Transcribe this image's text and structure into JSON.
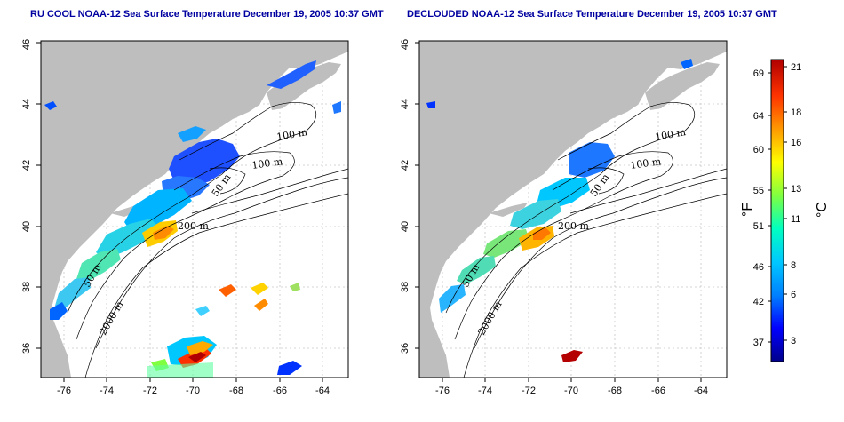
{
  "panels": [
    {
      "title": "RU COOL NOAA-12 Sea Surface Temperature December 19, 2005 10:37 GMT",
      "contour_labels": [
        "100 m",
        "100 m",
        "50 m",
        "200 m",
        "50 m",
        "2000 m"
      ]
    },
    {
      "title": "DECLOUDED NOAA-12 Sea Surface Temperature December 19, 2005 10:37 GMT",
      "contour_labels": [
        "100 m",
        "100 m",
        "50 m",
        "200 m",
        "50 m",
        "2000 m"
      ]
    }
  ],
  "axes": {
    "lon_labels": [
      "-76",
      "-74",
      "-72",
      "-70",
      "-68",
      "-66",
      "-64"
    ],
    "lat_labels": [
      "36",
      "38",
      "40",
      "42",
      "44",
      "46"
    ]
  },
  "colorbar": {
    "fahrenheit_labels": [
      "69",
      "64",
      "60",
      "55",
      "51",
      "46",
      "42",
      "37"
    ],
    "celsius_labels": [
      "21",
      "18",
      "16",
      "13",
      "11",
      "8",
      "6",
      "3"
    ],
    "fahrenheit_unit": "°F",
    "celsius_unit": "°C",
    "colors": [
      "#00008b",
      "#0000ff",
      "#0080ff",
      "#00c8ff",
      "#00ffc0",
      "#80ff40",
      "#ffff00",
      "#ff9900",
      "#ff3300",
      "#b00000"
    ]
  },
  "colors": {
    "land": "#bebebe",
    "ocean": "#ffffff",
    "title": "#0000a0"
  }
}
